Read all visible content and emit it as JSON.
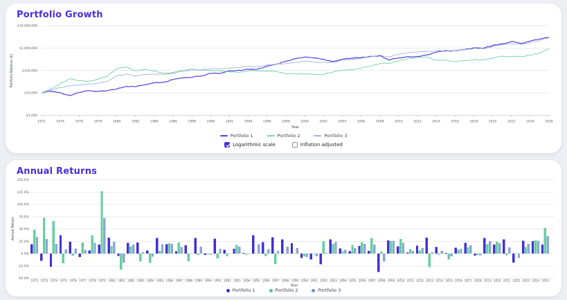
{
  "portfolio_growth": {
    "title": "Portfolio Growth",
    "x_axis_label": "Year",
    "y_axis_label": "Portfolio Balance ($)",
    "legend": [
      {
        "label": "Portfolio 1",
        "color": "#4f41dc"
      },
      {
        "label": "Portfolio 2",
        "color": "#77d7a8"
      },
      {
        "label": "Portfolio 3",
        "color": "#9cb0dd"
      }
    ],
    "controls": [
      {
        "label": "Logarithmic scale",
        "checked": true
      },
      {
        "label": "Inflation adjusted",
        "checked": false
      }
    ]
  },
  "annual_returns": {
    "title": "Annual Returns",
    "x_axis_label": "Year",
    "y_axis_label": "Annual Return",
    "legend": [
      {
        "label": "Portfolio 1",
        "color": "#4130d4"
      },
      {
        "label": "Portfolio 2",
        "color": "#4ec98c"
      },
      {
        "label": "Portfolio 3",
        "color": "#6d8fd4"
      }
    ]
  },
  "chart_data": [
    {
      "type": "line",
      "title": "Portfolio Growth",
      "xlabel": "Year",
      "ylabel": "Portfolio Balance ($)",
      "yscale": "log",
      "ylim": [
        1000,
        10000000
      ],
      "grid": "horizontal",
      "legend_position": "bottom",
      "y_ticks": [
        "$10,000,000",
        "$1,000,000",
        "$100,000",
        "$10,000",
        "$1,000"
      ],
      "y_tick_values": [
        10000000,
        1000000,
        100000,
        10000,
        1000
      ],
      "x_ticks": [
        1972,
        1974,
        1976,
        1978,
        1980,
        1982,
        1984,
        1986,
        1988,
        1990,
        1992,
        1994,
        1996,
        1998,
        2000,
        2002,
        2004,
        2006,
        2008,
        2010,
        2012,
        2014,
        2016,
        2018,
        2020,
        2022,
        2024,
        2026
      ],
      "x_start": 1972,
      "x_end": 2026,
      "initial_balance": 10000,
      "series": [
        {
          "name": "Portfolio 1",
          "color": "#4f41dc",
          "values": [
            10000,
            11899,
            10151,
            7464,
            10243,
            12694,
            11785,
            12559,
            14896,
            19737,
            18766,
            22810,
            27956,
            29709,
            39136,
            46442,
            48880,
            56999,
            75062,
            72735,
            94898,
            102129,
            112424,
            113908,
            156715,
            192697,
            256981,
            330426,
            399948,
            363553,
            320326,
            249534,
            321100,
            356036,
            373517,
            432495,
            456239,
            287430,
            363484,
            418224,
            427048,
            495376,
            655828,
            745611,
            755900,
            846306,
            1031055,
            985895,
            1296354,
            1534883,
            1975548,
            1617776,
            2043089,
            2554270,
            3014039
          ]
        },
        {
          "name": "Portfolio 2",
          "color": "#77d7a8",
          "values": [
            10000,
            14874,
            25805,
            42875,
            34360,
            32951,
            40412,
            55368,
            125436,
            144490,
            97386,
            111936,
            93679,
            75702,
            80002,
            97051,
            118606,
            100507,
            97653,
            96178,
            86493,
            81520,
            95933,
            93851,
            94771,
            90421,
            71062,
            70472,
            71071,
            67205,
            67709,
            85022,
            101933,
            106673,
            125629,
            154775,
            203668,
            212466,
            265667,
            343348,
            374009,
            398694,
            289731,
            283385,
            249067,
            269067,
            302889,
            294378,
            349809,
            434357,
            419111,
            420955,
            477574,
            604608,
            919004
          ]
        },
        {
          "name": "Portfolio 3",
          "color": "#9cb0dd",
          "values": [
            10000,
            13387,
            17323,
            20760,
            22564,
            24802,
            26722,
            32545,
            56166,
            69561,
            56512,
            66825,
            68917,
            64465,
            76527,
            91826,
            104434,
            105144,
            120316,
            117537,
            129526,
            130744,
            148891,
            148251,
            176834,
            193086,
            204632,
            233035,
            258552,
            239755,
            226401,
            230340,
            286290,
            308533,
            343520,
            410507,
            486615,
            407101,
            511929,
            625322,
            659840,
            734402,
            752982,
            796278,
            753518,
            828870,
            971436,
            936464,
            1172078,
            1421625,
            1600750,
            1459244,
            1749218,
            2200685,
            2970925
          ]
        }
      ]
    },
    {
      "type": "bar",
      "title": "Annual Returns",
      "xlabel": "Year",
      "ylabel": "Annual Return",
      "ylim": [
        -50,
        150
      ],
      "grid": "horizontal",
      "legend_position": "bottom",
      "y_ticks": [
        "150.0%",
        "125.0%",
        "100.0%",
        "75.0%",
        "50.0%",
        "25.0%",
        "0.0%",
        "-25.0%",
        "-50.0%"
      ],
      "y_tick_values": [
        150,
        125,
        100,
        75,
        50,
        25,
        0,
        -25,
        -50
      ],
      "categories": [
        1972,
        1973,
        1974,
        1975,
        1976,
        1977,
        1978,
        1979,
        1980,
        1981,
        1982,
        1983,
        1984,
        1985,
        1986,
        1987,
        1988,
        1989,
        1990,
        1991,
        1992,
        1993,
        1994,
        1995,
        1996,
        1997,
        1998,
        1999,
        2000,
        2001,
        2002,
        2003,
        2004,
        2005,
        2006,
        2007,
        2008,
        2009,
        2010,
        2011,
        2012,
        2013,
        2014,
        2015,
        2016,
        2017,
        2018,
        2019,
        2020,
        2021,
        2022,
        2023,
        2024,
        2025
      ],
      "series": [
        {
          "name": "Portfolio 1",
          "color": "#4130d4",
          "values": [
            18.99,
            -14.69,
            -26.47,
            37.23,
            23.93,
            -7.16,
            6.57,
            18.61,
            32.5,
            -4.92,
            21.55,
            22.56,
            6.27,
            31.73,
            18.67,
            5.25,
            16.61,
            31.69,
            -3.1,
            30.47,
            7.62,
            10.08,
            1.32,
            37.58,
            22.96,
            33.36,
            28.58,
            21.04,
            -9.1,
            -11.89,
            -22.1,
            28.68,
            10.88,
            4.91,
            15.79,
            5.49,
            -37.0,
            26.46,
            15.06,
            2.11,
            16.0,
            32.39,
            13.69,
            1.38,
            11.96,
            21.83,
            -4.38,
            31.49,
            18.4,
            28.71,
            -18.11,
            26.29,
            25.02,
            18.0
          ]
        },
        {
          "name": "Portfolio 2",
          "color": "#63d09d",
          "values": [
            48.74,
            73.49,
            66.15,
            -19.86,
            -4.1,
            22.64,
            37.01,
            126.55,
            15.19,
            -32.6,
            14.94,
            -16.31,
            -19.19,
            5.68,
            21.31,
            22.21,
            -15.26,
            -2.84,
            -1.51,
            -10.07,
            -5.75,
            17.68,
            -2.17,
            0.98,
            -4.59,
            -21.41,
            -0.83,
            0.85,
            -5.44,
            0.75,
            25.57,
            19.89,
            4.65,
            17.77,
            23.2,
            31.59,
            4.32,
            25.04,
            29.24,
            8.93,
            6.6,
            -27.33,
            -2.19,
            -12.11,
            8.03,
            12.57,
            -2.81,
            18.83,
            24.17,
            -3.51,
            0.44,
            13.45,
            26.6,
            52.0
          ]
        },
        {
          "name": "Portfolio 3",
          "color": "#8ba6d8",
          "values": [
            33.87,
            29.4,
            19.84,
            8.69,
            9.92,
            7.74,
            21.79,
            72.58,
            23.85,
            -18.76,
            18.25,
            3.13,
            -6.46,
            18.71,
            19.99,
            13.73,
            0.68,
            14.43,
            -2.31,
            10.2,
            0.94,
            13.88,
            -0.43,
            19.28,
            9.19,
            5.98,
            13.88,
            10.95,
            -7.27,
            -5.57,
            1.74,
            24.29,
            7.77,
            11.34,
            19.5,
            18.54,
            -16.34,
            25.75,
            22.15,
            5.52,
            11.3,
            2.53,
            5.75,
            -5.37,
            10.0,
            17.2,
            -3.6,
            25.16,
            21.29,
            12.6,
            -8.84,
            19.87,
            25.81,
            35.0
          ]
        }
      ]
    }
  ]
}
